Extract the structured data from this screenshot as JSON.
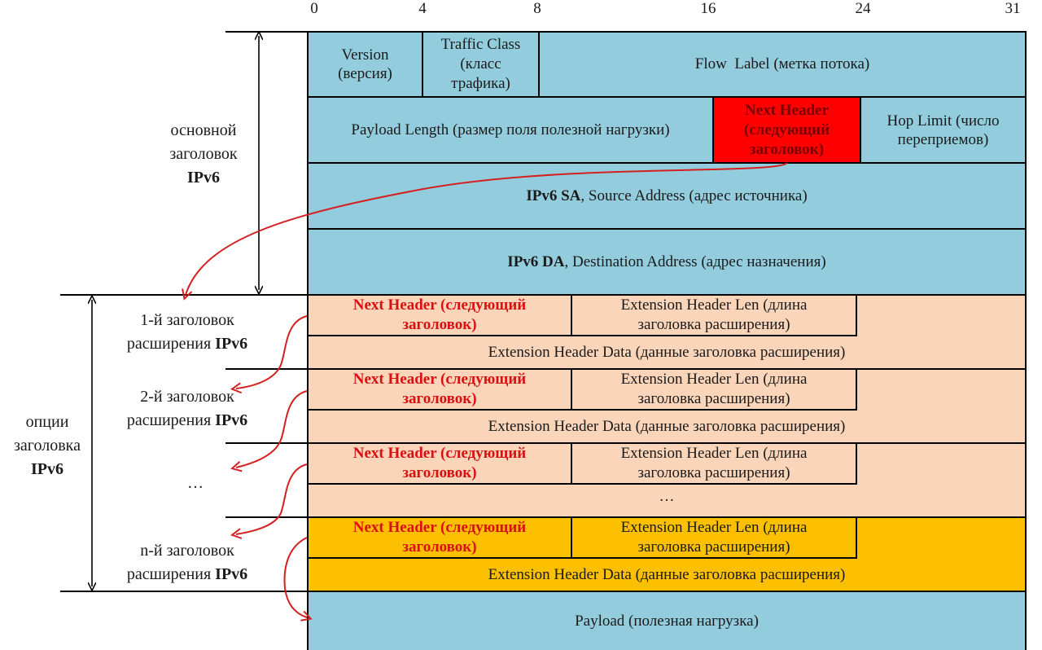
{
  "bit_ticks": [
    "0",
    "4",
    "8",
    "16",
    "24",
    "31"
  ],
  "main_header": {
    "version": {
      "line1": "Version",
      "line2": "(версия)"
    },
    "traffic_class": {
      "line1": "Traffic Class",
      "line2": "(класс",
      "line3": "трафика)"
    },
    "flow_label": "Flow  Label (метка потока)",
    "payload_length": "Payload Length (размер поля полезной нагрузки)",
    "next_header": {
      "line1": "Next Header",
      "line2": "(следующий",
      "line3": "заголовок)"
    },
    "hop_limit": {
      "line1": "Hop Limit (число",
      "line2": "переприемов)"
    },
    "source_address": {
      "bold": "IPv6 SA",
      "rest": ", Source Address (адрес источника)"
    },
    "destination_address": {
      "bold": "IPv6 DA",
      "rest": ", Destination Address (адрес назначения)"
    }
  },
  "ext_headers": [
    {
      "nh1": "Next Header (следующий",
      "nh2": "заголовок)",
      "len1": "Extension Header Len (длина",
      "len2": "заголовка расширения)",
      "data": "Extension Header Data (данные заголовка расширения)"
    },
    {
      "nh1": "Next Header (следующий",
      "nh2": "заголовок)",
      "len1": "Extension Header Len (длина",
      "len2": "заголовка расширения)",
      "data": "Extension Header Data (данные заголовка расширения)"
    },
    {
      "nh1": "Next Header (следующий",
      "nh2": "заголовок)",
      "len1": "Extension Header Len (длина",
      "len2": "заголовка расширения)",
      "data": "…"
    },
    {
      "nh1": "Next Header (следующий",
      "nh2": "заголовок)",
      "len1": "Extension Header Len (длина",
      "len2": "заголовка расширения)",
      "data": "Extension Header Data (данные заголовка расширения)"
    }
  ],
  "payload": "Payload (полезная нагрузка)",
  "left_labels": {
    "main": {
      "line1": "основной",
      "line2": "заголовок",
      "line3": "IPv6"
    },
    "options": {
      "line1": "опции",
      "line2": "заголовка",
      "line3": "IPv6"
    },
    "ext1": {
      "line1": "1-й заголовок",
      "line2a": "расширения ",
      "line2b": "IPv6"
    },
    "ext2": {
      "line1": "2-й заголовок",
      "line2a": "расширения ",
      "line2b": "IPv6"
    },
    "ellipsis": "…",
    "extn": {
      "line1": "n-й заголовок",
      "line2a": "расширения ",
      "line2b": "IPv6"
    }
  },
  "colors": {
    "blue": "#93cddd",
    "peach": "#fbd5b9",
    "gold": "#fcc000",
    "red": "#ff0000",
    "arrow": "#d42020"
  }
}
